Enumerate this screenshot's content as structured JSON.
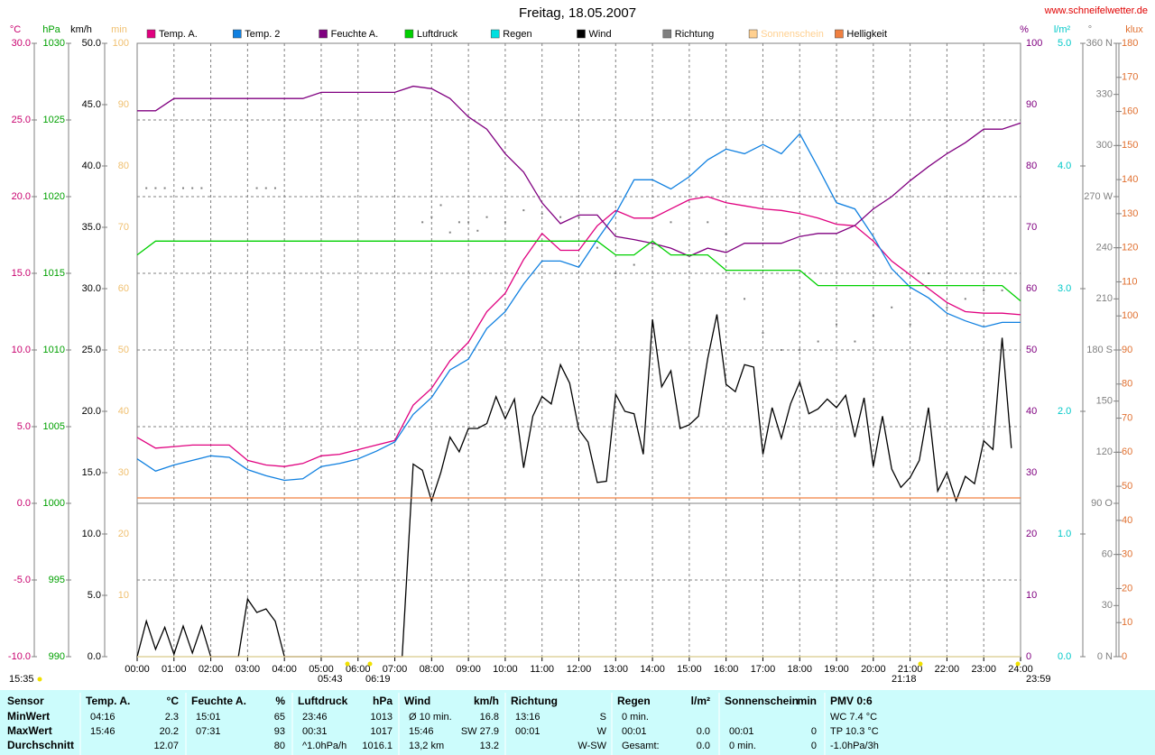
{
  "chart_data": {
    "type": "line",
    "title": "Freitag, 18.05.2007",
    "site": "www.schneifelwetter.de",
    "xlim": [
      0,
      24
    ],
    "xticks": [
      {
        "value": 0,
        "label": "00:00"
      },
      {
        "value": 1,
        "label": "01:00"
      },
      {
        "value": 2,
        "label": "02:00"
      },
      {
        "value": 3,
        "label": "03:00"
      },
      {
        "value": 4,
        "label": "04:00"
      },
      {
        "value": 5,
        "label": "05:00"
      },
      {
        "value": 6,
        "label": "06:00"
      },
      {
        "value": 7,
        "label": "07:00"
      },
      {
        "value": 8,
        "label": "08:00"
      },
      {
        "value": 9,
        "label": "09:00"
      },
      {
        "value": 10,
        "label": "10:00"
      },
      {
        "value": 11,
        "label": "11:00"
      },
      {
        "value": 12,
        "label": "12:00"
      },
      {
        "value": 13,
        "label": "13:00"
      },
      {
        "value": 14,
        "label": "14:00"
      },
      {
        "value": 15,
        "label": "15:00"
      },
      {
        "value": 16,
        "label": "16:00"
      },
      {
        "value": 17,
        "label": "17:00"
      },
      {
        "value": 18,
        "label": "18:00"
      },
      {
        "value": 19,
        "label": "19:00"
      },
      {
        "value": 20,
        "label": "20:00"
      },
      {
        "value": 21,
        "label": "21:00"
      },
      {
        "value": 22,
        "label": "22:00"
      },
      {
        "value": 23,
        "label": "23:00"
      },
      {
        "value": 24,
        "label": "24:00"
      }
    ],
    "grid": true,
    "axes": [
      {
        "unit": "°C",
        "color": "#c8006e",
        "lim": [
          -10,
          30
        ],
        "ticks": [
          {
            "value": -10,
            "label": "-10.0"
          },
          {
            "value": -5,
            "label": "-5.0"
          },
          {
            "value": 0,
            "label": "0.0"
          },
          {
            "value": 5,
            "label": "5.0"
          },
          {
            "value": 10,
            "label": "10.0"
          },
          {
            "value": 15,
            "label": "15.0"
          },
          {
            "value": 20,
            "label": "20.0"
          },
          {
            "value": 25,
            "label": "25.0"
          },
          {
            "value": 30,
            "label": "30.0"
          }
        ]
      },
      {
        "unit": "hPa",
        "color": "#00a000",
        "lim": [
          990,
          1030
        ],
        "ticks": [
          990,
          995,
          1000,
          1005,
          1010,
          1015,
          1020,
          1025,
          1030
        ]
      },
      {
        "unit": "km/h",
        "color": "#000000",
        "lim": [
          0,
          50
        ],
        "ticks": [
          {
            "value": 0,
            "label": "0.0"
          },
          {
            "value": 5,
            "label": "5.0"
          },
          {
            "value": 10,
            "label": "10.0"
          },
          {
            "value": 15,
            "label": "15.0"
          },
          {
            "value": 20,
            "label": "20.0"
          },
          {
            "value": 25,
            "label": "25.0"
          },
          {
            "value": 30,
            "label": "30.0"
          },
          {
            "value": 35,
            "label": "35.0"
          },
          {
            "value": 40,
            "label": "40.0"
          },
          {
            "value": 45,
            "label": "45.0"
          },
          {
            "value": 50,
            "label": "50.0"
          }
        ]
      },
      {
        "unit": "min",
        "color": "#f0c070",
        "lim": [
          0,
          100
        ],
        "ticks": [
          10,
          20,
          30,
          40,
          50,
          60,
          70,
          80,
          90,
          100
        ]
      },
      {
        "unit": "%",
        "color": "#800080",
        "lim": [
          0,
          100
        ],
        "ticks": [
          0,
          10,
          20,
          30,
          40,
          50,
          60,
          70,
          80,
          90,
          100
        ]
      },
      {
        "unit": "l/m²",
        "color": "#00c8c8",
        "lim": [
          0,
          5
        ],
        "ticks": [
          {
            "value": 0,
            "label": "0.0"
          },
          {
            "value": 1,
            "label": "1.0"
          },
          {
            "value": 2,
            "label": "2.0"
          },
          {
            "value": 3,
            "label": "3.0"
          },
          {
            "value": 4,
            "label": "4.0"
          },
          {
            "value": 5,
            "label": "5.0"
          }
        ]
      },
      {
        "unit": "°",
        "color": "#808080",
        "lim": [
          0,
          360
        ],
        "ticks": [
          {
            "value": 0,
            "label": "0 N"
          },
          30,
          60,
          {
            "value": 90,
            "label": "90 O"
          },
          120,
          150,
          {
            "value": 180,
            "label": "180 S"
          },
          210,
          240,
          {
            "value": 270,
            "label": "270 W"
          },
          300,
          330,
          {
            "value": 360,
            "label": "360 N"
          }
        ]
      },
      {
        "unit": "klux",
        "color": "#e07030",
        "lim": [
          0,
          180
        ],
        "ticks": [
          0,
          10,
          20,
          30,
          40,
          50,
          60,
          70,
          80,
          90,
          100,
          110,
          120,
          130,
          140,
          150,
          160,
          170,
          180
        ]
      }
    ],
    "x": [
      0,
      0.5,
      1,
      1.5,
      2,
      2.5,
      3,
      3.5,
      4,
      4.5,
      5,
      5.5,
      6,
      6.5,
      7,
      7.5,
      8,
      8.5,
      9,
      9.5,
      10,
      10.5,
      11,
      11.5,
      12,
      12.5,
      13,
      13.5,
      14,
      14.5,
      15,
      15.5,
      16,
      16.5,
      17,
      17.5,
      18,
      18.5,
      19,
      19.5,
      20,
      20.5,
      21,
      21.5,
      22,
      22.5,
      23,
      23.5,
      24
    ],
    "series": [
      {
        "name": "Temp. A.",
        "color": "#e0007f",
        "axis": 0,
        "values": [
          4.3,
          3.6,
          3.7,
          3.8,
          3.8,
          3.8,
          2.8,
          2.5,
          2.4,
          2.6,
          3.1,
          3.2,
          3.5,
          3.8,
          4.1,
          6.4,
          7.5,
          9.3,
          10.5,
          12.5,
          13.7,
          15.9,
          17.6,
          16.5,
          16.5,
          18.1,
          19.1,
          18.6,
          18.6,
          19.2,
          19.8,
          20.0,
          19.6,
          19.4,
          19.2,
          19.1,
          18.9,
          18.6,
          18.2,
          18.1,
          17.1,
          15.8,
          14.9,
          14.0,
          13.1,
          12.5,
          12.4,
          12.4,
          12.3
        ]
      },
      {
        "name": "Temp. 2",
        "color": "#1080e0",
        "axis": 0,
        "values": [
          2.9,
          2.1,
          2.5,
          2.8,
          3.1,
          3.0,
          2.2,
          1.8,
          1.5,
          1.6,
          2.4,
          2.6,
          2.9,
          3.4,
          4.0,
          5.8,
          6.9,
          8.7,
          9.4,
          11.4,
          12.5,
          14.3,
          15.8,
          15.8,
          15.4,
          17.2,
          18.9,
          21.1,
          21.1,
          20.5,
          21.3,
          22.4,
          23.1,
          22.8,
          23.4,
          22.8,
          24.1,
          21.9,
          19.6,
          19.2,
          17.4,
          15.3,
          14.1,
          13.4,
          12.4,
          11.9,
          11.5,
          11.8,
          11.8
        ]
      },
      {
        "name": "Feuchte A.",
        "color": "#800080",
        "axis": 4,
        "values": [
          89,
          89,
          91,
          91,
          91,
          91,
          91,
          91,
          91,
          91,
          92,
          92,
          92,
          92,
          92,
          93,
          92.6,
          91,
          88,
          86,
          82,
          79,
          74,
          70.6,
          72,
          72,
          68.5,
          68,
          67.4,
          66.6,
          65.3,
          66.6,
          65.9,
          67.4,
          67.4,
          67.4,
          68.5,
          69,
          69,
          70.3,
          73,
          75,
          77.6,
          79.9,
          82,
          83.8,
          86,
          86,
          87
        ]
      },
      {
        "name": "Luftdruck",
        "color": "#00d000",
        "axis": 1,
        "values": [
          1016.2,
          1017.1,
          1017.1,
          1017.1,
          1017.1,
          1017.1,
          1017.1,
          1017.1,
          1017.1,
          1017.1,
          1017.1,
          1017.1,
          1017.1,
          1017.1,
          1017.1,
          1017.1,
          1017.1,
          1017.1,
          1017.1,
          1017.1,
          1017.1,
          1017.1,
          1017.1,
          1017.1,
          1017.1,
          1017.1,
          1016.2,
          1016.2,
          1017.1,
          1016.2,
          1016.2,
          1016.2,
          1015.2,
          1015.2,
          1015.2,
          1015.2,
          1015.2,
          1014.2,
          1014.2,
          1014.2,
          1014.2,
          1014.2,
          1014.2,
          1014.2,
          1014.2,
          1014.2,
          1014.2,
          1014.2,
          1013.2
        ]
      },
      {
        "name": "Regen",
        "color": "#00e0e0",
        "axis": 5,
        "x": [
          0,
          24
        ],
        "values": [
          0,
          0
        ]
      },
      {
        "name": "Wind",
        "color": "#000000",
        "axis": 2,
        "x": [
          0,
          0.25,
          0.5,
          0.75,
          1,
          1.25,
          1.5,
          1.75,
          2,
          2.75,
          3,
          3.25,
          3.5,
          3.75,
          4,
          7.2,
          7.5,
          7.75,
          8,
          8.25,
          8.5,
          8.75,
          9,
          9.25,
          9.5,
          9.75,
          10,
          10.25,
          10.5,
          10.75,
          11,
          11.25,
          11.5,
          11.75,
          12,
          12.25,
          12.5,
          12.75,
          13,
          13.25,
          13.5,
          13.75,
          14,
          14.25,
          14.5,
          14.75,
          15,
          15.25,
          15.5,
          15.75,
          16,
          16.25,
          16.5,
          16.75,
          17,
          17.25,
          17.5,
          17.75,
          18,
          18.25,
          18.5,
          18.75,
          19,
          19.25,
          19.5,
          19.75,
          20,
          20.25,
          20.5,
          20.75,
          21,
          21.25,
          21.5,
          21.75,
          22,
          22.25,
          22.5,
          22.75,
          23,
          23.25,
          23.5,
          23.75
        ],
        "values": [
          0,
          2.9,
          0.6,
          2.4,
          0.2,
          2.5,
          0.3,
          2.5,
          0,
          0,
          4.7,
          3.6,
          3.9,
          2.9,
          0,
          0,
          15.7,
          15.2,
          12.7,
          15.0,
          17.9,
          16.7,
          18.6,
          18.6,
          19.0,
          21.2,
          19.4,
          21.0,
          15.4,
          19.6,
          21.2,
          20.6,
          23.8,
          22.3,
          18.5,
          17.5,
          14.2,
          14.3,
          21.4,
          20.0,
          19.8,
          16.5,
          27.5,
          22.0,
          23.3,
          18.6,
          18.9,
          19.6,
          24.3,
          27.9,
          22.2,
          21.6,
          23.8,
          23.6,
          16.5,
          20.3,
          17.8,
          20.6,
          22.4,
          19.8,
          20.2,
          21.0,
          20.3,
          21.3,
          17.9,
          21.1,
          15.5,
          19.6,
          15.3,
          13.8,
          14.6,
          16.0,
          20.3,
          13.5,
          15.0,
          12.7,
          14.7,
          14.1,
          17.6,
          16.9,
          26.0,
          17.0
        ]
      },
      {
        "name": "Richtung",
        "color": "#808080",
        "axis": 6,
        "mark": "dot",
        "x": [
          0.25,
          0.5,
          0.75,
          1.25,
          1.5,
          1.75,
          3.25,
          3.5,
          3.75,
          7.75,
          8,
          8.25,
          8.5,
          8.75,
          9,
          9.25,
          9.5,
          10,
          10.5,
          11,
          11.5,
          12,
          12.5,
          13,
          13.5,
          14,
          14.5,
          15,
          15.5,
          16,
          16.5,
          17,
          17.5,
          18,
          18.5,
          19,
          19.5,
          20,
          20.5,
          21,
          21.5,
          22,
          22.5,
          23,
          23.5
        ],
        "values": [
          275,
          275,
          275,
          275,
          275,
          275,
          275,
          275,
          275,
          255,
          258,
          265,
          249,
          255,
          255,
          250,
          258,
          255,
          262,
          260,
          258,
          258,
          240,
          225,
          230,
          240,
          255,
          235,
          255,
          248,
          210,
          190,
          180,
          180,
          185,
          195,
          185,
          200,
          205,
          195,
          225,
          205,
          210,
          215,
          215
        ]
      },
      {
        "name": "Sonnenschein",
        "color": "#ffd090",
        "axis": 3,
        "x": [
          0,
          24
        ],
        "values": [
          0,
          0
        ]
      },
      {
        "name": "Helligkeit",
        "color": "#f08040",
        "axis": 7,
        "x": [
          0,
          24
        ],
        "values": [
          46.6,
          46.6
        ]
      }
    ],
    "annotations": [
      "15:35",
      "05:43",
      "06:19",
      "21:18",
      "23:59"
    ]
  },
  "table": {
    "columns": [
      [
        "Sensor"
      ],
      [
        "Temp. A.",
        "°C"
      ],
      [
        "Feuchte A.",
        "%"
      ],
      [
        "Luftdruck",
        "hPa"
      ],
      [
        "Wind",
        "km/h"
      ],
      [
        "Richtung"
      ],
      [
        "Regen",
        "l/m²"
      ],
      [
        "Sonnenschein",
        "min"
      ],
      [
        "PMV 0:6"
      ]
    ],
    "rows": [
      {
        "label": "MinWert",
        "cells": [
          [
            "04:16",
            "2.3"
          ],
          [
            "15:01",
            "65"
          ],
          [
            "23:46",
            "1013"
          ],
          [
            "Ø 10 min.",
            "16.8"
          ],
          [
            "13:16",
            "S"
          ],
          [
            "0 min.",
            null
          ],
          [
            null,
            null
          ],
          [
            "WC 7.4 °C"
          ]
        ]
      },
      {
        "label": "MaxWert",
        "cells": [
          [
            "15:46",
            "20.2"
          ],
          [
            "07:31",
            "93"
          ],
          [
            "00:31",
            "1017"
          ],
          [
            "15:46",
            "SW 27.9"
          ],
          [
            "00:01",
            "W"
          ],
          [
            "00:01",
            "0.0"
          ],
          [
            "00:01",
            "0"
          ],
          [
            "TP 10.3 °C"
          ]
        ]
      },
      {
        "label": "Durchschnitt",
        "cells": [
          [
            null,
            "12.07"
          ],
          [
            null,
            "80"
          ],
          [
            "^1.0hPa/h",
            "1016.1"
          ],
          [
            "13,2 km",
            "13.2"
          ],
          [
            null,
            "W-SW"
          ],
          [
            "Gesamt:",
            "0.0"
          ],
          [
            "0 min.",
            "0"
          ],
          [
            "-1.0hPa/3h"
          ]
        ]
      }
    ]
  }
}
